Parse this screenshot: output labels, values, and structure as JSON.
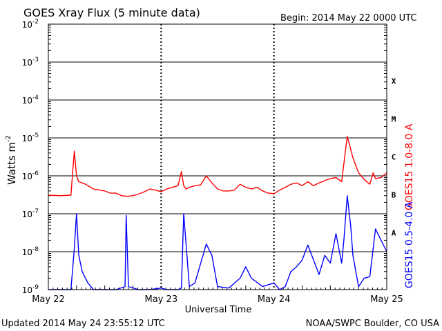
{
  "title": "GOES Xray Flux (5 minute data)",
  "begin_label": "Begin:  2014 May 22 0000 UTC",
  "updated": "Updated 2014 May 24 23:55:12 UTC",
  "credit": "NOAA/SWPC Boulder, CO USA",
  "chart_data": {
    "type": "line",
    "yscale": "log",
    "ylim": [
      1e-09,
      0.01
    ],
    "yticks": [
      {
        "exp": -9,
        "label": "10",
        "sup": "-9"
      },
      {
        "exp": -8,
        "label": "10",
        "sup": "-8"
      },
      {
        "exp": -7,
        "label": "10",
        "sup": "-7"
      },
      {
        "exp": -6,
        "label": "10",
        "sup": "-6"
      },
      {
        "exp": -5,
        "label": "10",
        "sup": "-5"
      },
      {
        "exp": -4,
        "label": "10",
        "sup": "-4"
      },
      {
        "exp": -3,
        "label": "10",
        "sup": "-3"
      },
      {
        "exp": -2,
        "label": "10",
        "sup": "-2"
      }
    ],
    "ylabel": "Watts m",
    "ylabel_sup": "-2",
    "xlabel": "Universal Time",
    "xlim": [
      0,
      3
    ],
    "xticks": [
      {
        "day": 0,
        "label": "May 22"
      },
      {
        "day": 1,
        "label": "May 23"
      },
      {
        "day": 2,
        "label": "May 24"
      },
      {
        "day": 3,
        "label": "May 25"
      }
    ],
    "flare_classes": [
      {
        "label": "A",
        "exp": -7.5
      },
      {
        "label": "B",
        "exp": -6.5
      },
      {
        "label": "C",
        "exp": -5.5
      },
      {
        "label": "M",
        "exp": -4.5
      },
      {
        "label": "X",
        "exp": -3.5
      }
    ],
    "grid": "horizontal at each decade",
    "series": [
      {
        "name": "GOES15 1.0-8.0 A",
        "color": "#ff0000",
        "x_days": [
          0,
          0.1,
          0.2,
          0.23,
          0.25,
          0.27,
          0.3,
          0.33,
          0.4,
          0.5,
          0.55,
          0.6,
          0.65,
          0.7,
          0.75,
          0.8,
          0.85,
          0.9,
          0.95,
          1.0,
          1.05,
          1.1,
          1.15,
          1.18,
          1.2,
          1.22,
          1.25,
          1.3,
          1.35,
          1.4,
          1.45,
          1.5,
          1.55,
          1.6,
          1.65,
          1.7,
          1.75,
          1.8,
          1.85,
          1.9,
          1.95,
          2.0,
          2.05,
          2.1,
          2.15,
          2.2,
          2.25,
          2.3,
          2.35,
          2.4,
          2.45,
          2.5,
          2.55,
          2.6,
          2.65,
          2.7,
          2.75,
          2.8,
          2.85,
          2.88,
          2.9,
          2.95,
          3.0
        ],
        "values": [
          3.1e-07,
          3e-07,
          3.1e-07,
          4.5e-06,
          1e-06,
          7e-07,
          6.5e-07,
          6e-07,
          4.5e-07,
          4e-07,
          3.5e-07,
          3.5e-07,
          3e-07,
          2.9e-07,
          3e-07,
          3.3e-07,
          3.8e-07,
          4.5e-07,
          4.2e-07,
          3.8e-07,
          4.5e-07,
          5e-07,
          5.5e-07,
          1.3e-06,
          5.5e-07,
          4.5e-07,
          5e-07,
          5.5e-07,
          5.8e-07,
          1e-06,
          6.5e-07,
          4.5e-07,
          4e-07,
          4e-07,
          4.2e-07,
          6e-07,
          5e-07,
          4.5e-07,
          5e-07,
          4e-07,
          3.5e-07,
          3.4e-07,
          4.2e-07,
          5e-07,
          6e-07,
          6.5e-07,
          5.5e-07,
          7e-07,
          5.5e-07,
          6.5e-07,
          7.5e-07,
          8.5e-07,
          9e-07,
          7e-07,
          1.1e-05,
          3e-06,
          1.2e-06,
          8e-07,
          6e-07,
          1.2e-06,
          8.5e-07,
          9e-07,
          1.2e-06
        ]
      },
      {
        "name": "GOES15 0.5-4.0 A",
        "color": "#0000ff",
        "x_days": [
          0,
          0.2,
          0.23,
          0.25,
          0.27,
          0.3,
          0.35,
          0.4,
          0.5,
          0.6,
          0.68,
          0.69,
          0.71,
          0.8,
          0.9,
          1.0,
          1.05,
          1.08,
          1.1,
          1.15,
          1.18,
          1.2,
          1.25,
          1.3,
          1.4,
          1.45,
          1.5,
          1.6,
          1.7,
          1.75,
          1.8,
          1.9,
          2.0,
          2.05,
          2.1,
          2.15,
          2.2,
          2.25,
          2.3,
          2.4,
          2.45,
          2.5,
          2.55,
          2.6,
          2.62,
          2.65,
          2.68,
          2.7,
          2.75,
          2.8,
          2.85,
          2.9,
          3.0
        ],
        "values": [
          1e-09,
          1e-09,
          1.2e-08,
          1e-07,
          8e-09,
          3e-09,
          1.5e-09,
          1e-09,
          1e-09,
          1e-09,
          1.2e-09,
          9e-08,
          1.2e-09,
          1e-09,
          1e-09,
          1.1e-09,
          1e-09,
          1e-09,
          1e-09,
          1e-09,
          1.1e-09,
          1e-07,
          1.2e-09,
          1.5e-09,
          1.6e-08,
          8e-09,
          1.2e-09,
          1.1e-09,
          2e-09,
          4e-09,
          2e-09,
          1.2e-09,
          1.5e-09,
          1e-09,
          1.2e-09,
          3e-09,
          4e-09,
          6e-09,
          1.5e-08,
          2.5e-09,
          8e-09,
          5e-09,
          3e-08,
          5e-09,
          2e-08,
          3e-07,
          5e-08,
          8e-09,
          1.2e-09,
          2e-09,
          2.2e-09,
          4e-08,
          1e-08
        ]
      }
    ]
  }
}
